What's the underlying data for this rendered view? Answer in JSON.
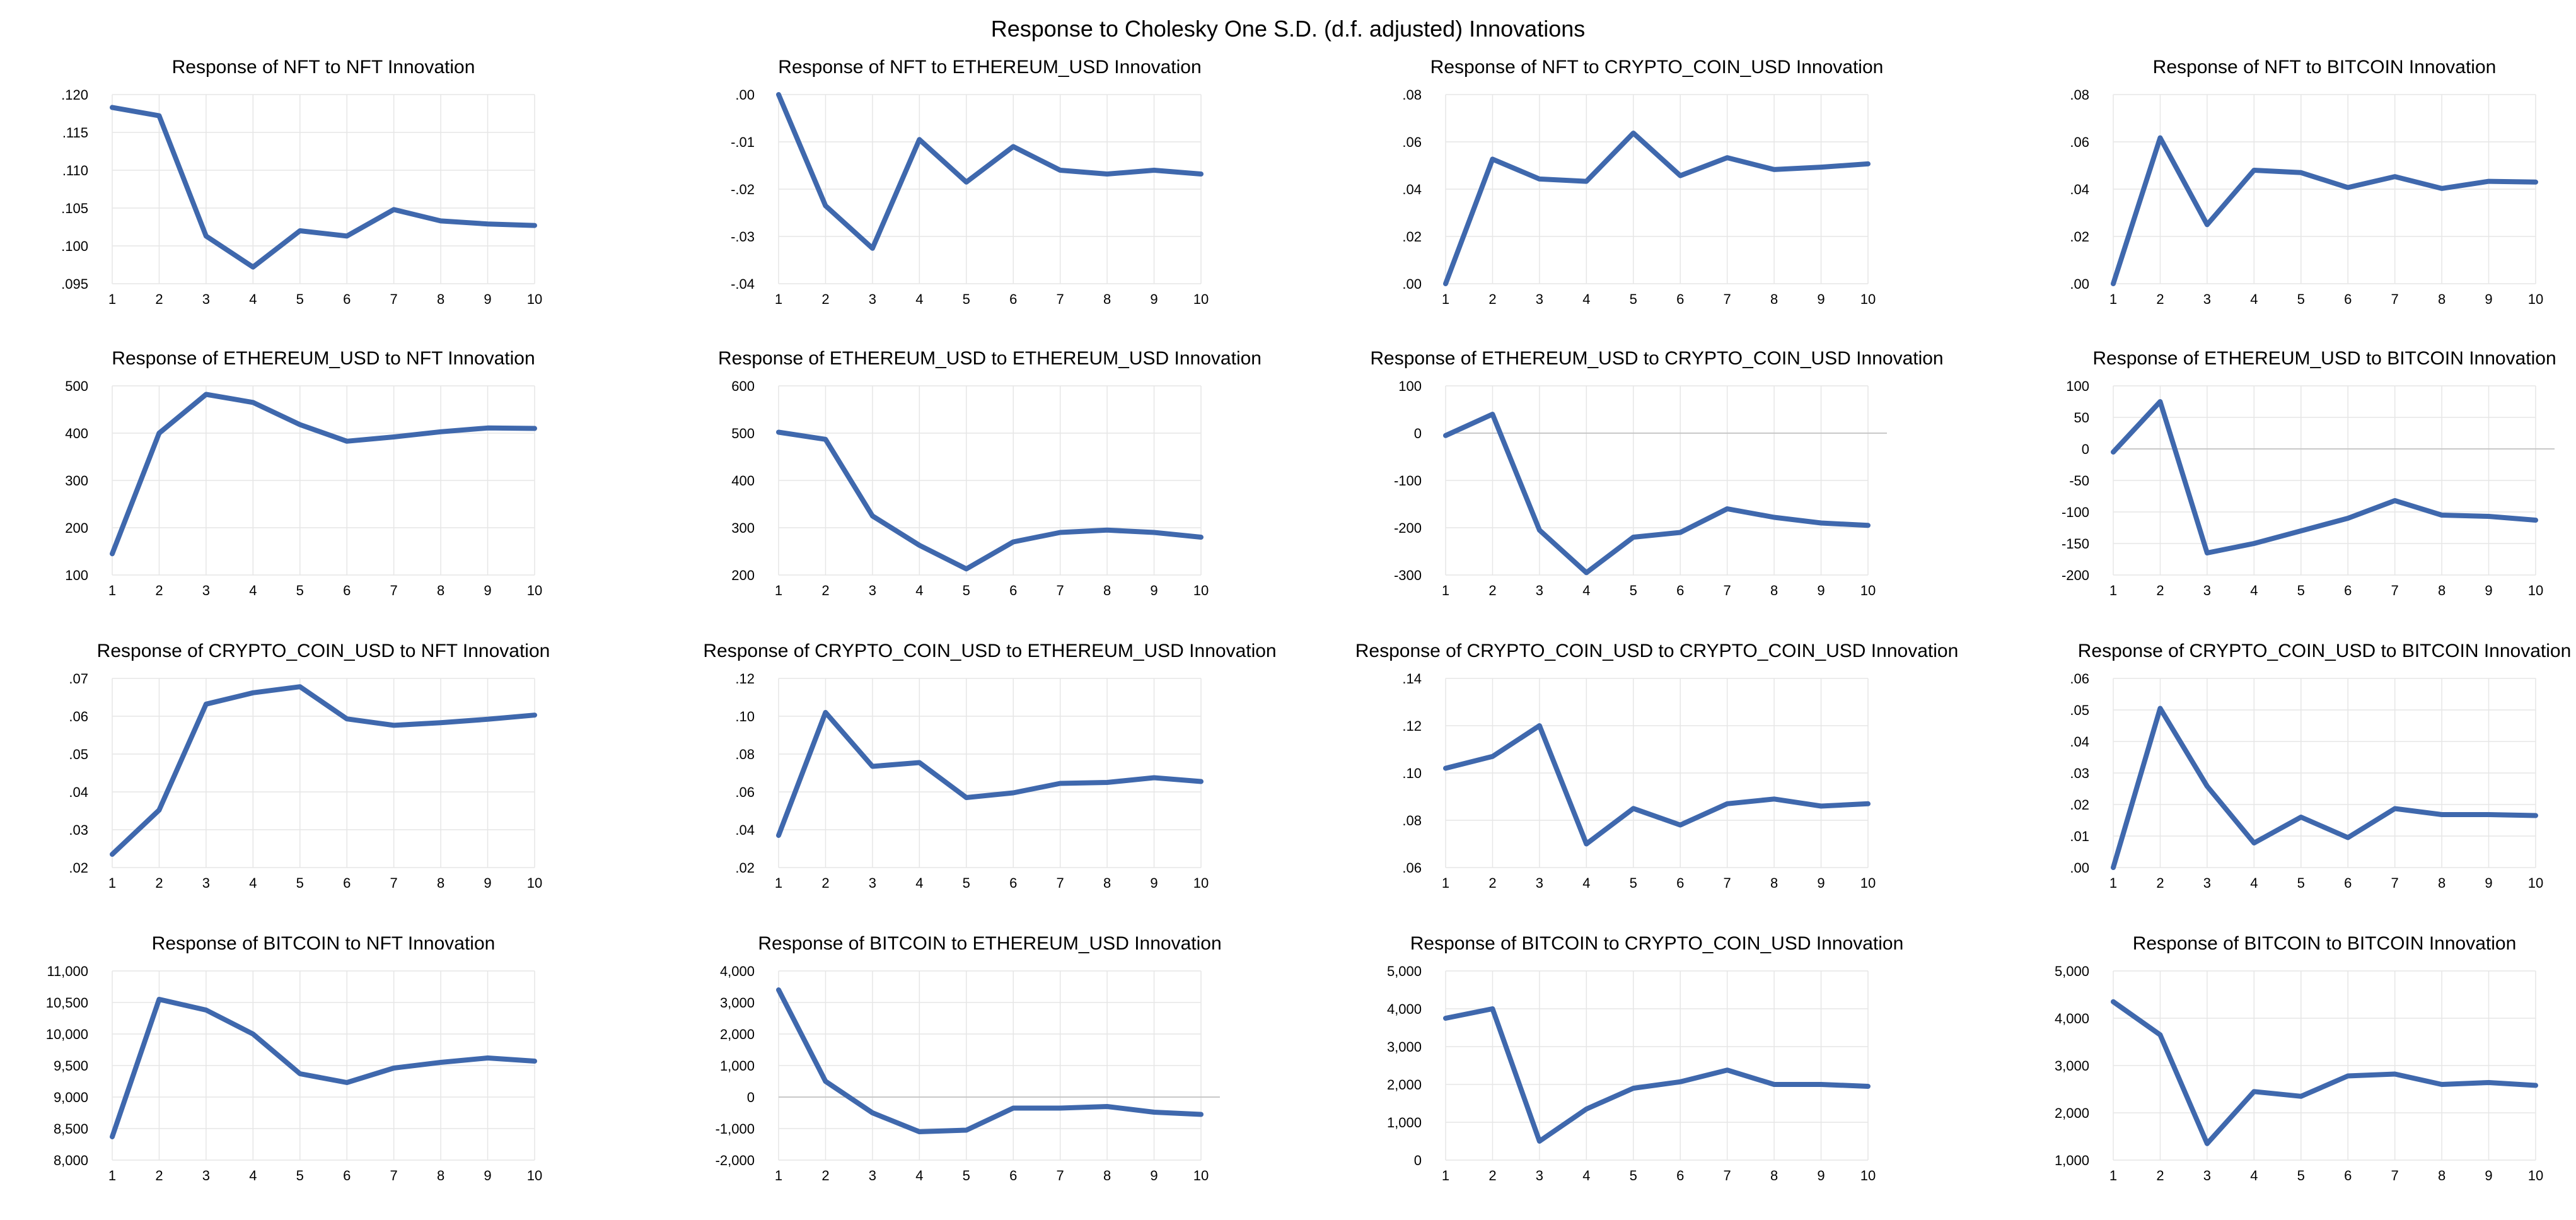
{
  "figure_title": "Response to Cholesky One S.D. (d.f. adjusted) Innovations",
  "colors": {
    "line": "#3f68ad",
    "grid": "#e6e6e6",
    "zero": "#c8c8c8",
    "text": "#000000"
  },
  "chart_data": [
    {
      "type": "line",
      "title": "Response of NFT to NFT Innovation",
      "x": [
        1,
        2,
        3,
        4,
        5,
        6,
        7,
        8,
        9,
        10
      ],
      "values": [
        0.1183,
        0.1172,
        0.1013,
        0.0972,
        0.102,
        0.1013,
        0.1048,
        0.1033,
        0.1029,
        0.1027
      ],
      "ylim": [
        0.095,
        0.12
      ],
      "yticks": [
        0.095,
        0.1,
        0.105,
        0.11,
        0.115,
        0.12
      ],
      "ytick_labels": [
        ".095",
        ".100",
        ".105",
        ".110",
        ".115",
        ".120"
      ],
      "zero_line": false
    },
    {
      "type": "line",
      "title": "Response of NFT to ETHEREUM_USD Innovation",
      "x": [
        1,
        2,
        3,
        4,
        5,
        6,
        7,
        8,
        9,
        10
      ],
      "values": [
        0,
        -0.0235,
        -0.0325,
        -0.0095,
        -0.0185,
        -0.011,
        -0.016,
        -0.0168,
        -0.016,
        -0.0168
      ],
      "ylim": [
        -0.04,
        0
      ],
      "yticks": [
        -0.04,
        -0.03,
        -0.02,
        -0.01,
        0
      ],
      "ytick_labels": [
        "-.04",
        "-.03",
        "-.02",
        "-.01",
        ".00"
      ],
      "zero_line": false
    },
    {
      "type": "line",
      "title": "Response of NFT to CRYPTO_COIN_USD Innovation",
      "x": [
        1,
        2,
        3,
        4,
        5,
        6,
        7,
        8,
        9,
        10
      ],
      "values": [
        0,
        0.0527,
        0.0443,
        0.0433,
        0.0637,
        0.0457,
        0.0533,
        0.0483,
        0.0493,
        0.0507
      ],
      "ylim": [
        0,
        0.08
      ],
      "yticks": [
        0,
        0.02,
        0.04,
        0.06,
        0.08
      ],
      "ytick_labels": [
        ".00",
        ".02",
        ".04",
        ".06",
        ".08"
      ],
      "zero_line": false
    },
    {
      "type": "line",
      "title": "Response of NFT to BITCOIN Innovation",
      "x": [
        1,
        2,
        3,
        4,
        5,
        6,
        7,
        8,
        9,
        10
      ],
      "values": [
        0,
        0.0617,
        0.025,
        0.048,
        0.047,
        0.0407,
        0.0453,
        0.0403,
        0.0433,
        0.043
      ],
      "ylim": [
        0,
        0.08
      ],
      "yticks": [
        0,
        0.02,
        0.04,
        0.06,
        0.08
      ],
      "ytick_labels": [
        ".00",
        ".02",
        ".04",
        ".06",
        ".08"
      ],
      "zero_line": false
    },
    {
      "type": "line",
      "title": "Response of ETHEREUM_USD to NFT Innovation",
      "x": [
        1,
        2,
        3,
        4,
        5,
        6,
        7,
        8,
        9,
        10
      ],
      "values": [
        145,
        400,
        482,
        465,
        418,
        383,
        392,
        403,
        411,
        410
      ],
      "ylim": [
        100,
        500
      ],
      "yticks": [
        100,
        200,
        300,
        400,
        500
      ],
      "ytick_labels": [
        "100",
        "200",
        "300",
        "400",
        "500"
      ],
      "zero_line": false
    },
    {
      "type": "line",
      "title": "Response of ETHEREUM_USD to ETHEREUM_USD Innovation",
      "x": [
        1,
        2,
        3,
        4,
        5,
        6,
        7,
        8,
        9,
        10
      ],
      "values": [
        502,
        487,
        325,
        263,
        213,
        270,
        290,
        295,
        290,
        280
      ],
      "ylim": [
        200,
        600
      ],
      "yticks": [
        200,
        300,
        400,
        500,
        600
      ],
      "ytick_labels": [
        "200",
        "300",
        "400",
        "500",
        "600"
      ],
      "zero_line": false
    },
    {
      "type": "line",
      "title": "Response of ETHEREUM_USD to CRYPTO_COIN_USD Innovation",
      "x": [
        1,
        2,
        3,
        4,
        5,
        6,
        7,
        8,
        9,
        10
      ],
      "values": [
        -5,
        40,
        -205,
        -295,
        -220,
        -210,
        -160,
        -178,
        -190,
        -195
      ],
      "ylim": [
        -300,
        100
      ],
      "yticks": [
        -300,
        -200,
        -100,
        0,
        100
      ],
      "ytick_labels": [
        "-300",
        "-200",
        "-100",
        "0",
        "100"
      ],
      "zero_line": true
    },
    {
      "type": "line",
      "title": "Response of ETHEREUM_USD to BITCOIN Innovation",
      "x": [
        1,
        2,
        3,
        4,
        5,
        6,
        7,
        8,
        9,
        10
      ],
      "values": [
        -5,
        75,
        -165,
        -150,
        -130,
        -110,
        -82,
        -105,
        -107,
        -113
      ],
      "ylim": [
        -200,
        100
      ],
      "yticks": [
        -200,
        -150,
        -100,
        -50,
        0,
        50,
        100
      ],
      "ytick_labels": [
        "-200",
        "-150",
        "-100",
        "-50",
        "0",
        "50",
        "100"
      ],
      "zero_line": true
    },
    {
      "type": "line",
      "title": "Response of CRYPTO_COIN_USD to NFT Innovation",
      "x": [
        1,
        2,
        3,
        4,
        5,
        6,
        7,
        8,
        9,
        10
      ],
      "values": [
        0.0235,
        0.0352,
        0.0632,
        0.0662,
        0.0678,
        0.0593,
        0.0576,
        0.0583,
        0.0592,
        0.0603
      ],
      "ylim": [
        0.02,
        0.07
      ],
      "yticks": [
        0.02,
        0.03,
        0.04,
        0.05,
        0.06,
        0.07
      ],
      "ytick_labels": [
        ".02",
        ".03",
        ".04",
        ".05",
        ".06",
        ".07"
      ],
      "zero_line": false
    },
    {
      "type": "line",
      "title": "Response of CRYPTO_COIN_USD to ETHEREUM_USD Innovation",
      "x": [
        1,
        2,
        3,
        4,
        5,
        6,
        7,
        8,
        9,
        10
      ],
      "values": [
        0.037,
        0.102,
        0.0735,
        0.0755,
        0.057,
        0.0595,
        0.0645,
        0.065,
        0.0675,
        0.0655
      ],
      "ylim": [
        0.02,
        0.12
      ],
      "yticks": [
        0.02,
        0.04,
        0.06,
        0.08,
        0.1,
        0.12
      ],
      "ytick_labels": [
        ".02",
        ".04",
        ".06",
        ".08",
        ".10",
        ".12"
      ],
      "zero_line": false
    },
    {
      "type": "line",
      "title": "Response of CRYPTO_COIN_USD to CRYPTO_COIN_USD Innovation",
      "x": [
        1,
        2,
        3,
        4,
        5,
        6,
        7,
        8,
        9,
        10
      ],
      "values": [
        0.102,
        0.107,
        0.12,
        0.07,
        0.085,
        0.078,
        0.087,
        0.089,
        0.086,
        0.087
      ],
      "ylim": [
        0.06,
        0.14
      ],
      "yticks": [
        0.06,
        0.08,
        0.1,
        0.12,
        0.14
      ],
      "ytick_labels": [
        ".06",
        ".08",
        ".10",
        ".12",
        ".14"
      ],
      "zero_line": false
    },
    {
      "type": "line",
      "title": "Response of CRYPTO_COIN_USD to BITCOIN Innovation",
      "x": [
        1,
        2,
        3,
        4,
        5,
        6,
        7,
        8,
        9,
        10
      ],
      "values": [
        0,
        0.0505,
        0.0258,
        0.0078,
        0.016,
        0.0095,
        0.0187,
        0.0168,
        0.0168,
        0.0165
      ],
      "ylim": [
        0,
        0.06
      ],
      "yticks": [
        0,
        0.01,
        0.02,
        0.03,
        0.04,
        0.05,
        0.06
      ],
      "ytick_labels": [
        ".00",
        ".01",
        ".02",
        ".03",
        ".04",
        ".05",
        ".06"
      ],
      "zero_line": false
    },
    {
      "type": "line",
      "title": "Response of BITCOIN to NFT Innovation",
      "x": [
        1,
        2,
        3,
        4,
        5,
        6,
        7,
        8,
        9,
        10
      ],
      "values": [
        8370,
        10550,
        10380,
        10000,
        9370,
        9230,
        9460,
        9550,
        9620,
        9570
      ],
      "ylim": [
        8000,
        11000
      ],
      "yticks": [
        8000,
        8500,
        9000,
        9500,
        10000,
        10500,
        11000
      ],
      "ytick_labels": [
        "8,000",
        "8,500",
        "9,000",
        "9,500",
        "10,000",
        "10,500",
        "11,000"
      ],
      "zero_line": false
    },
    {
      "type": "line",
      "title": "Response of BITCOIN to ETHEREUM_USD Innovation",
      "x": [
        1,
        2,
        3,
        4,
        5,
        6,
        7,
        8,
        9,
        10
      ],
      "values": [
        3400,
        500,
        -500,
        -1100,
        -1050,
        -350,
        -350,
        -300,
        -480,
        -550
      ],
      "ylim": [
        -2000,
        4000
      ],
      "yticks": [
        -2000,
        -1000,
        0,
        1000,
        2000,
        3000,
        4000
      ],
      "ytick_labels": [
        "-2,000",
        "-1,000",
        "0",
        "1,000",
        "2,000",
        "3,000",
        "4,000"
      ],
      "zero_line": true
    },
    {
      "type": "line",
      "title": "Response of BITCOIN to CRYPTO_COIN_USD Innovation",
      "x": [
        1,
        2,
        3,
        4,
        5,
        6,
        7,
        8,
        9,
        10
      ],
      "values": [
        3750,
        4000,
        500,
        1350,
        1900,
        2070,
        2380,
        2000,
        2000,
        1950
      ],
      "ylim": [
        0,
        5000
      ],
      "yticks": [
        0,
        1000,
        2000,
        3000,
        4000,
        5000
      ],
      "ytick_labels": [
        "0",
        "1,000",
        "2,000",
        "3,000",
        "4,000",
        "5,000"
      ],
      "zero_line": false
    },
    {
      "type": "line",
      "title": "Response of BITCOIN to BITCOIN Innovation",
      "x": [
        1,
        2,
        3,
        4,
        5,
        6,
        7,
        8,
        9,
        10
      ],
      "values": [
        4350,
        3650,
        1350,
        2450,
        2350,
        2780,
        2820,
        2600,
        2640,
        2580
      ],
      "ylim": [
        1000,
        5000
      ],
      "yticks": [
        1000,
        2000,
        3000,
        4000,
        5000
      ],
      "ytick_labels": [
        "1,000",
        "2,000",
        "3,000",
        "4,000",
        "5,000"
      ],
      "zero_line": false
    }
  ]
}
